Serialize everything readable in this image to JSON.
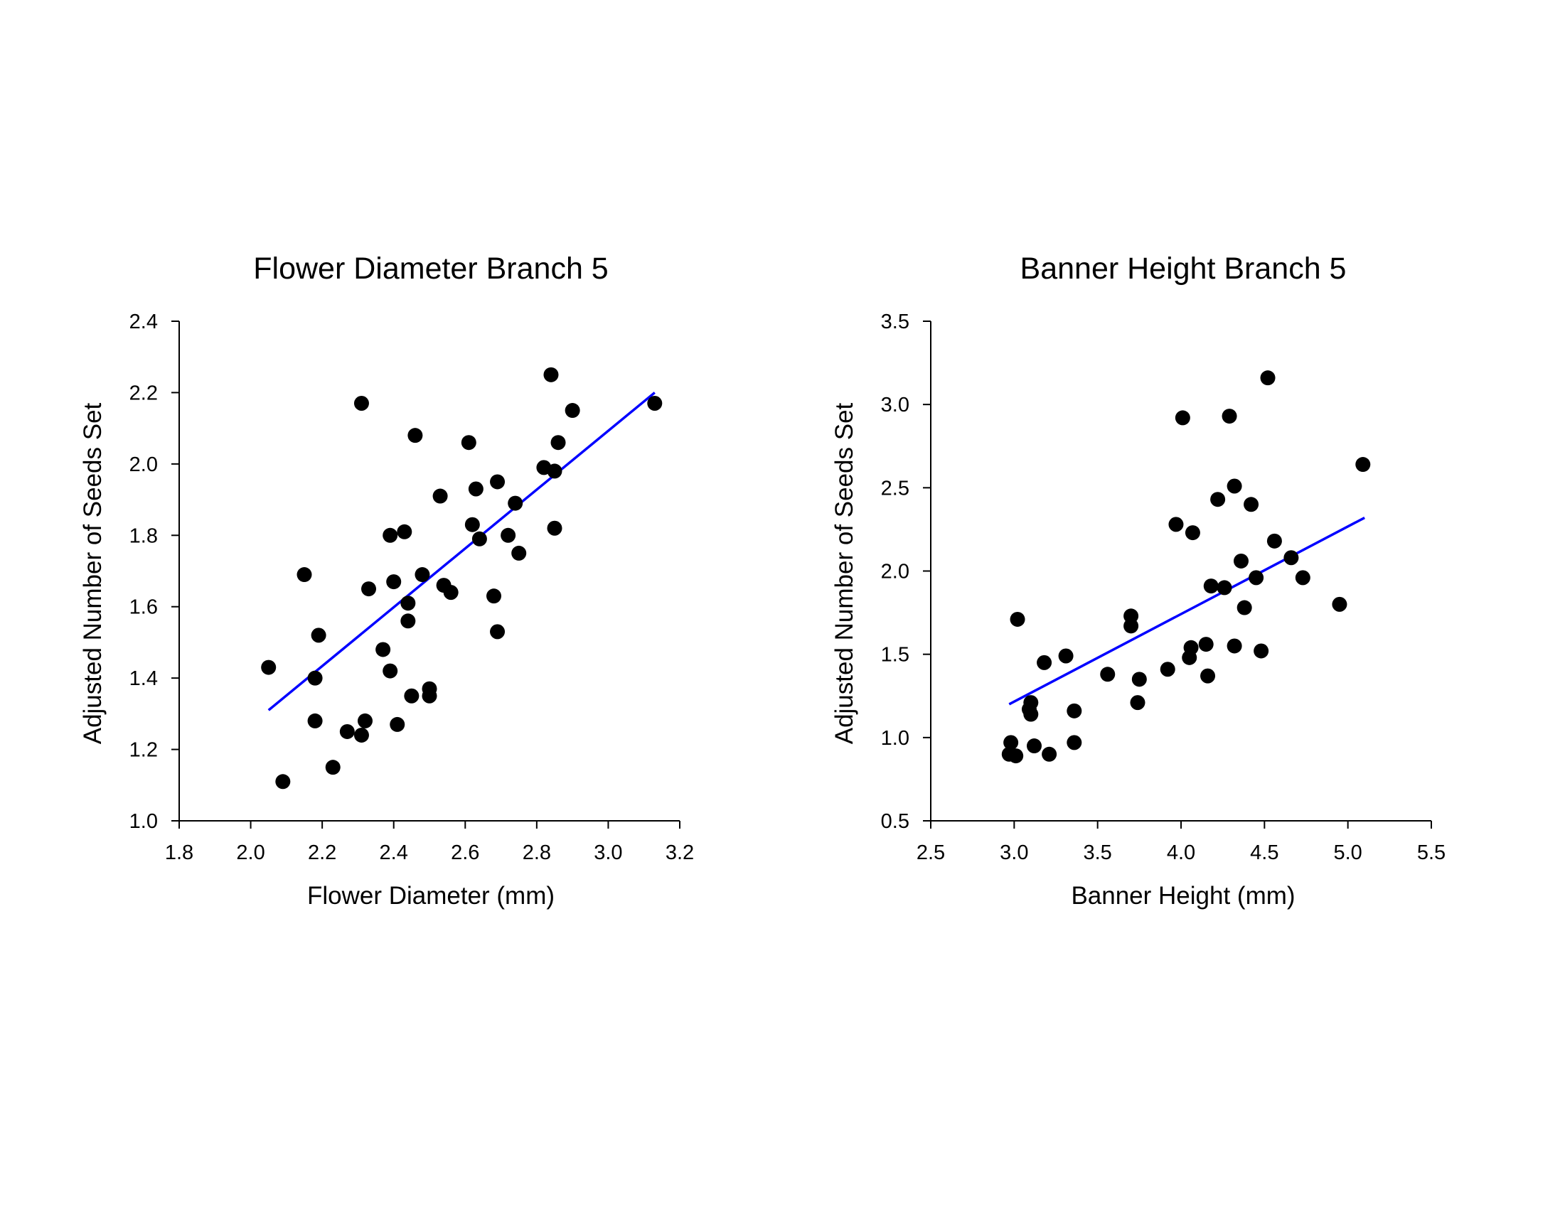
{
  "chart_data": [
    {
      "type": "scatter",
      "title": "Flower Diameter Branch 5",
      "xlabel": "Flower Diameter (mm)",
      "ylabel": "Adjusted Number of Seeds Set",
      "xlim": [
        1.8,
        3.2
      ],
      "ylim": [
        1.0,
        2.4
      ],
      "xticks": [
        "1.8",
        "2.0",
        "2.2",
        "2.4",
        "2.6",
        "2.8",
        "3.0",
        "3.2"
      ],
      "yticks": [
        "1.0",
        "1.2",
        "1.4",
        "1.6",
        "1.8",
        "2.0",
        "2.2",
        "2.4"
      ],
      "grid": false,
      "legend": "none",
      "point_color": "#000000",
      "line_color": "#0000ff",
      "points": [
        {
          "x": 2.05,
          "y": 1.43
        },
        {
          "x": 2.09,
          "y": 1.11
        },
        {
          "x": 2.15,
          "y": 1.69
        },
        {
          "x": 2.18,
          "y": 1.4
        },
        {
          "x": 2.18,
          "y": 1.28
        },
        {
          "x": 2.19,
          "y": 1.52
        },
        {
          "x": 2.23,
          "y": 1.15
        },
        {
          "x": 2.27,
          "y": 1.25
        },
        {
          "x": 2.31,
          "y": 1.24
        },
        {
          "x": 2.31,
          "y": 2.17
        },
        {
          "x": 2.32,
          "y": 1.28
        },
        {
          "x": 2.33,
          "y": 1.65
        },
        {
          "x": 2.37,
          "y": 1.48
        },
        {
          "x": 2.39,
          "y": 1.42
        },
        {
          "x": 2.39,
          "y": 1.8
        },
        {
          "x": 2.4,
          "y": 1.67
        },
        {
          "x": 2.41,
          "y": 1.27
        },
        {
          "x": 2.43,
          "y": 1.81
        },
        {
          "x": 2.44,
          "y": 1.61
        },
        {
          "x": 2.44,
          "y": 1.56
        },
        {
          "x": 2.45,
          "y": 1.35
        },
        {
          "x": 2.46,
          "y": 2.08
        },
        {
          "x": 2.48,
          "y": 1.69
        },
        {
          "x": 2.5,
          "y": 1.37
        },
        {
          "x": 2.5,
          "y": 1.35
        },
        {
          "x": 2.53,
          "y": 1.91
        },
        {
          "x": 2.54,
          "y": 1.66
        },
        {
          "x": 2.56,
          "y": 1.64
        },
        {
          "x": 2.61,
          "y": 2.06
        },
        {
          "x": 2.62,
          "y": 1.83
        },
        {
          "x": 2.63,
          "y": 1.93
        },
        {
          "x": 2.64,
          "y": 1.79
        },
        {
          "x": 2.68,
          "y": 1.63
        },
        {
          "x": 2.69,
          "y": 1.95
        },
        {
          "x": 2.69,
          "y": 1.53
        },
        {
          "x": 2.72,
          "y": 1.8
        },
        {
          "x": 2.74,
          "y": 1.89
        },
        {
          "x": 2.75,
          "y": 1.75
        },
        {
          "x": 2.82,
          "y": 1.99
        },
        {
          "x": 2.84,
          "y": 2.25
        },
        {
          "x": 2.85,
          "y": 1.98
        },
        {
          "x": 2.85,
          "y": 1.82
        },
        {
          "x": 2.86,
          "y": 2.06
        },
        {
          "x": 2.9,
          "y": 2.15
        },
        {
          "x": 3.13,
          "y": 2.17
        }
      ],
      "fit_line": {
        "x": [
          2.05,
          3.13
        ],
        "y": [
          1.31,
          2.2
        ]
      }
    },
    {
      "type": "scatter",
      "title": "Banner Height Branch 5",
      "xlabel": "Banner Height (mm)",
      "ylabel": "Adjusted Number of Seeds Set",
      "xlim": [
        2.5,
        5.5
      ],
      "ylim": [
        0.5,
        3.5
      ],
      "xticks": [
        "2.5",
        "3.0",
        "3.5",
        "4.0",
        "4.5",
        "5.0",
        "5.5"
      ],
      "yticks": [
        "0.5",
        "1.0",
        "1.5",
        "2.0",
        "2.5",
        "3.0",
        "3.5"
      ],
      "grid": false,
      "legend": "none",
      "point_color": "#000000",
      "line_color": "#0000ff",
      "points": [
        {
          "x": 2.97,
          "y": 0.9
        },
        {
          "x": 2.98,
          "y": 0.97
        },
        {
          "x": 3.01,
          "y": 0.89
        },
        {
          "x": 3.02,
          "y": 1.71
        },
        {
          "x": 3.09,
          "y": 1.17
        },
        {
          "x": 3.1,
          "y": 1.21
        },
        {
          "x": 3.1,
          "y": 1.14
        },
        {
          "x": 3.12,
          "y": 0.95
        },
        {
          "x": 3.18,
          "y": 1.45
        },
        {
          "x": 3.21,
          "y": 0.9
        },
        {
          "x": 3.31,
          "y": 1.49
        },
        {
          "x": 3.36,
          "y": 0.97
        },
        {
          "x": 3.36,
          "y": 1.16
        },
        {
          "x": 3.56,
          "y": 1.38
        },
        {
          "x": 3.7,
          "y": 1.67
        },
        {
          "x": 3.7,
          "y": 1.73
        },
        {
          "x": 3.74,
          "y": 1.21
        },
        {
          "x": 3.75,
          "y": 1.35
        },
        {
          "x": 3.92,
          "y": 1.41
        },
        {
          "x": 3.97,
          "y": 2.28
        },
        {
          "x": 4.01,
          "y": 2.92
        },
        {
          "x": 4.05,
          "y": 1.48
        },
        {
          "x": 4.06,
          "y": 1.54
        },
        {
          "x": 4.07,
          "y": 2.23
        },
        {
          "x": 4.15,
          "y": 1.56
        },
        {
          "x": 4.16,
          "y": 1.37
        },
        {
          "x": 4.18,
          "y": 1.91
        },
        {
          "x": 4.22,
          "y": 2.43
        },
        {
          "x": 4.26,
          "y": 1.9
        },
        {
          "x": 4.29,
          "y": 2.93
        },
        {
          "x": 4.32,
          "y": 2.51
        },
        {
          "x": 4.32,
          "y": 1.55
        },
        {
          "x": 4.36,
          "y": 2.06
        },
        {
          "x": 4.38,
          "y": 1.78
        },
        {
          "x": 4.42,
          "y": 2.4
        },
        {
          "x": 4.45,
          "y": 1.96
        },
        {
          "x": 4.48,
          "y": 1.52
        },
        {
          "x": 4.52,
          "y": 3.16
        },
        {
          "x": 4.56,
          "y": 2.18
        },
        {
          "x": 4.66,
          "y": 2.08
        },
        {
          "x": 4.73,
          "y": 1.96
        },
        {
          "x": 4.95,
          "y": 1.8
        },
        {
          "x": 5.09,
          "y": 2.64
        }
      ],
      "fit_line": {
        "x": [
          2.97,
          5.1
        ],
        "y": [
          1.2,
          2.32
        ]
      }
    }
  ]
}
